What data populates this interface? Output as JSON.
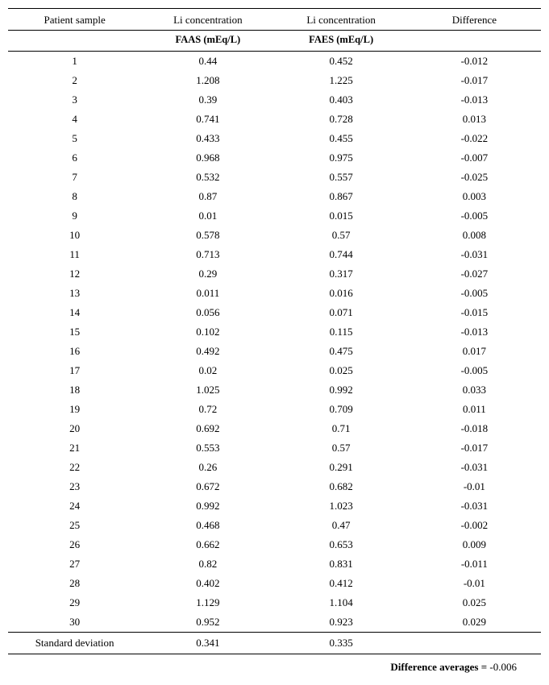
{
  "table": {
    "type": "table",
    "background_color": "#ffffff",
    "text_color": "#000000",
    "border_color": "#000000",
    "font_family": "Times New Roman",
    "header_fontsize": 13,
    "body_fontsize": 13,
    "columns": [
      {
        "label": "Patient sample",
        "sublabel": "",
        "align": "center",
        "width_pct": 25
      },
      {
        "label": "Li concentration",
        "sublabel": "FAAS (mEq/L)",
        "align": "center",
        "width_pct": 25
      },
      {
        "label": "Li concentration",
        "sublabel": "FAES (mEq/L)",
        "align": "center",
        "width_pct": 25
      },
      {
        "label": "Difference",
        "sublabel": "",
        "align": "center",
        "width_pct": 25
      }
    ],
    "rows": [
      [
        "1",
        "0.44",
        "0.452",
        "-0.012"
      ],
      [
        "2",
        "1.208",
        "1.225",
        "-0.017"
      ],
      [
        "3",
        "0.39",
        "0.403",
        "-0.013"
      ],
      [
        "4",
        "0.741",
        "0.728",
        "0.013"
      ],
      [
        "5",
        "0.433",
        "0.455",
        "-0.022"
      ],
      [
        "6",
        "0.968",
        "0.975",
        "-0.007"
      ],
      [
        "7",
        "0.532",
        "0.557",
        "-0.025"
      ],
      [
        "8",
        "0.87",
        "0.867",
        "0.003"
      ],
      [
        "9",
        "0.01",
        "0.015",
        "-0.005"
      ],
      [
        "10",
        "0.578",
        "0.57",
        "0.008"
      ],
      [
        "11",
        "0.713",
        "0.744",
        "-0.031"
      ],
      [
        "12",
        "0.29",
        "0.317",
        "-0.027"
      ],
      [
        "13",
        "0.011",
        "0.016",
        "-0.005"
      ],
      [
        "14",
        "0.056",
        "0.071",
        "-0.015"
      ],
      [
        "15",
        "0.102",
        "0.115",
        "-0.013"
      ],
      [
        "16",
        "0.492",
        "0.475",
        "0.017"
      ],
      [
        "17",
        "0.02",
        "0.025",
        "-0.005"
      ],
      [
        "18",
        "1.025",
        "0.992",
        "0.033"
      ],
      [
        "19",
        "0.72",
        "0.709",
        "0.011"
      ],
      [
        "20",
        "0.692",
        "0.71",
        "-0.018"
      ],
      [
        "21",
        "0.553",
        "0.57",
        "-0.017"
      ],
      [
        "22",
        "0.26",
        "0.291",
        "-0.031"
      ],
      [
        "23",
        "0.672",
        "0.682",
        "-0.01"
      ],
      [
        "24",
        "0.992",
        "1.023",
        "-0.031"
      ],
      [
        "25",
        "0.468",
        "0.47",
        "-0.002"
      ],
      [
        "26",
        "0.662",
        "0.653",
        "0.009"
      ],
      [
        "27",
        "0.82",
        "0.831",
        "-0.011"
      ],
      [
        "28",
        "0.402",
        "0.412",
        "-0.01"
      ],
      [
        "29",
        "1.129",
        "1.104",
        "0.025"
      ],
      [
        "30",
        "0.952",
        "0.923",
        "0.029"
      ]
    ],
    "summary_row": [
      "Standard deviation",
      "0.341",
      "0.335",
      ""
    ],
    "footer": {
      "label": "Difference  averages",
      "value": "-0.006"
    }
  }
}
